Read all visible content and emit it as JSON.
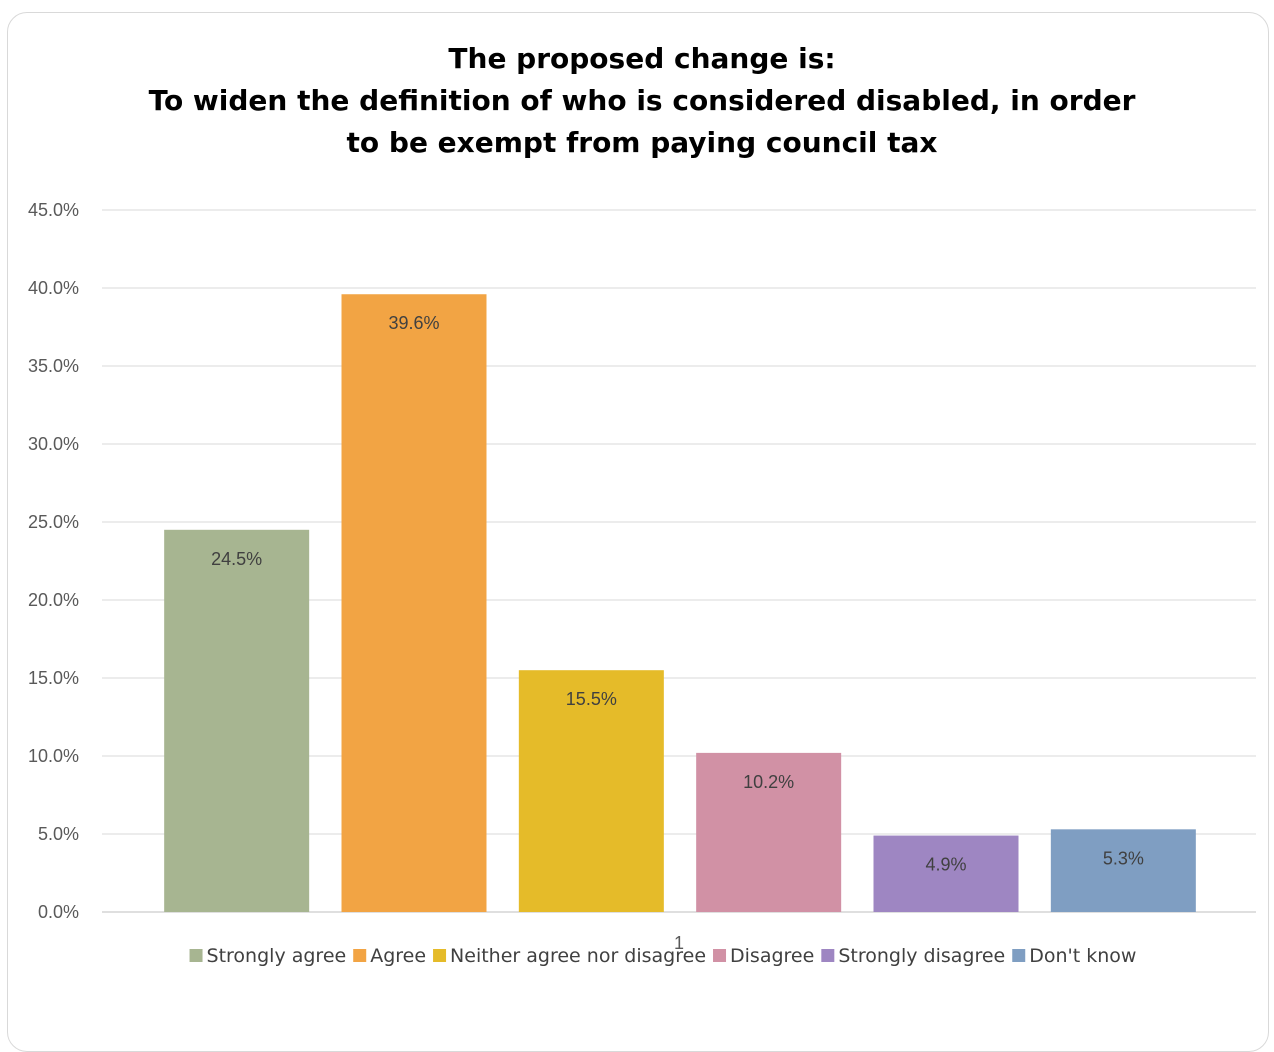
{
  "chart_data": {
    "type": "bar",
    "title_lines": [
      "The proposed change is:",
      "To widen the definition of who is considered disabled, in order",
      "to be exempt from paying council tax"
    ],
    "categories": [
      "1"
    ],
    "series": [
      {
        "name": "Strongly agree",
        "value": 24.5,
        "label": "24.5%",
        "color": "#a7b591"
      },
      {
        "name": "Agree",
        "value": 39.6,
        "label": "39.6%",
        "color": "#f2a444"
      },
      {
        "name": "Neither agree nor disagree",
        "value": 15.5,
        "label": "15.5%",
        "color": "#e5bb29"
      },
      {
        "name": "Disagree",
        "value": 10.2,
        "label": "10.2%",
        "color": "#d191a5"
      },
      {
        "name": "Strongly disagree",
        "value": 4.9,
        "label": "4.9%",
        "color": "#9e86c2"
      },
      {
        "name": "Don't know",
        "value": 5.3,
        "label": "5.3%",
        "color": "#7f9ec2"
      }
    ],
    "y_ticks": [
      "0.0%",
      "5.0%",
      "10.0%",
      "15.0%",
      "20.0%",
      "25.0%",
      "30.0%",
      "35.0%",
      "40.0%",
      "45.0%"
    ],
    "ylim": [
      0,
      45
    ],
    "grid": true,
    "legend_position": "bottom",
    "category_axis_label": "1"
  }
}
